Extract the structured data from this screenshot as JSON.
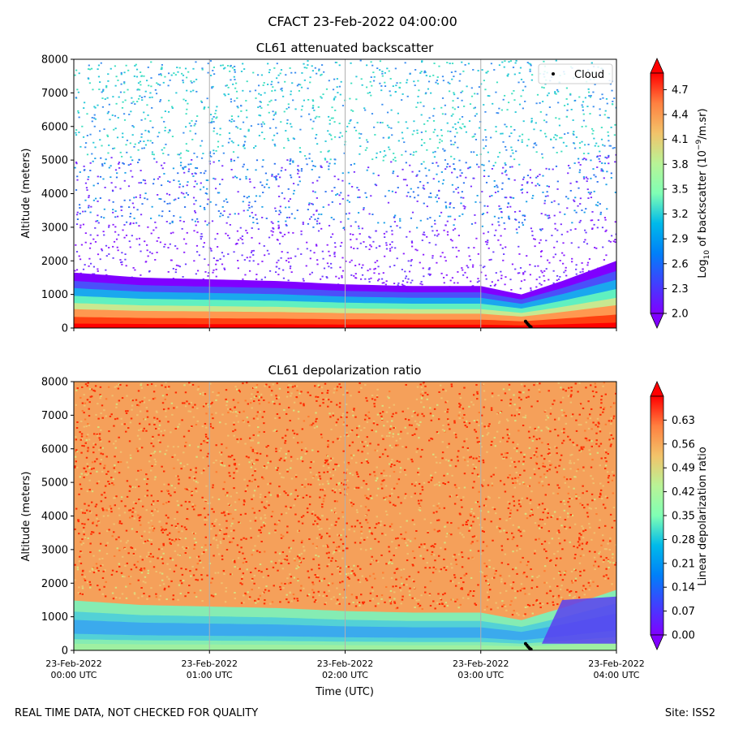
{
  "figure": {
    "suptitle": "CFACT 23-Feb-2022 04:00:00",
    "footer_left": "REAL TIME DATA, NOT CHECKED FOR QUALITY",
    "footer_right": "Site: ISS2"
  },
  "chart_data": [
    {
      "type": "heatmap",
      "title": "CL61 attenuated backscatter",
      "xlabel": "",
      "ylabel": "Altitude (meters)",
      "ylim": [
        0,
        8000
      ],
      "yticks": [
        0,
        1000,
        2000,
        3000,
        4000,
        5000,
        6000,
        7000,
        8000
      ],
      "xlim_hours_utc": [
        0,
        4
      ],
      "colorscale": "rainbow",
      "clim": [
        2.0,
        4.9
      ],
      "colorbar_label": "Log10 of backscatter (10^-9/m.sr)",
      "colorbar_ticks": [
        "2.0",
        "2.3",
        "2.6",
        "2.9",
        "3.2",
        "3.5",
        "3.8",
        "4.1",
        "4.4",
        "4.7"
      ],
      "legend": {
        "entries": [
          "Cloud"
        ],
        "position": "top-right"
      },
      "boundary_layer_top_m": [
        {
          "t": 0.0,
          "h": 1650
        },
        {
          "t": 0.5,
          "h": 1500
        },
        {
          "t": 1.0,
          "h": 1450
        },
        {
          "t": 1.5,
          "h": 1400
        },
        {
          "t": 2.0,
          "h": 1300
        },
        {
          "t": 2.5,
          "h": 1250
        },
        {
          "t": 3.0,
          "h": 1250
        },
        {
          "t": 3.3,
          "h": 1000
        },
        {
          "t": 3.6,
          "h": 1400
        },
        {
          "t": 4.0,
          "h": 2000
        }
      ],
      "cloud_points": [
        {
          "t": 3.33,
          "h": 200
        },
        {
          "t": 3.34,
          "h": 150
        },
        {
          "t": 3.35,
          "h": 100
        },
        {
          "t": 3.36,
          "h": 60
        },
        {
          "t": 3.37,
          "h": 30
        }
      ]
    },
    {
      "type": "heatmap",
      "title": "CL61 depolarization ratio",
      "xlabel": "Time (UTC)",
      "ylabel": "Altitude (meters)",
      "ylim": [
        0,
        8000
      ],
      "yticks": [
        0,
        1000,
        2000,
        3000,
        4000,
        5000,
        6000,
        7000,
        8000
      ],
      "xlim_hours_utc": [
        0,
        4
      ],
      "xticks": [
        {
          "line1": "23-Feb-2022",
          "line2": "00:00 UTC"
        },
        {
          "line1": "23-Feb-2022",
          "line2": "01:00 UTC"
        },
        {
          "line1": "23-Feb-2022",
          "line2": "02:00 UTC"
        },
        {
          "line1": "23-Feb-2022",
          "line2": "03:00 UTC"
        },
        {
          "line1": "23-Feb-2022",
          "line2": "04:00 UTC"
        }
      ],
      "colorscale": "rainbow",
      "clim": [
        0.0,
        0.7
      ],
      "colorbar_label": "Linear depolarization ratio",
      "colorbar_ticks": [
        "0.00",
        "0.07",
        "0.14",
        "0.21",
        "0.28",
        "0.35",
        "0.42",
        "0.49",
        "0.56",
        "0.63"
      ],
      "cloud_points": [
        {
          "t": 3.33,
          "h": 200
        },
        {
          "t": 3.34,
          "h": 150
        },
        {
          "t": 3.35,
          "h": 100
        },
        {
          "t": 3.36,
          "h": 60
        },
        {
          "t": 3.37,
          "h": 30
        }
      ]
    }
  ]
}
